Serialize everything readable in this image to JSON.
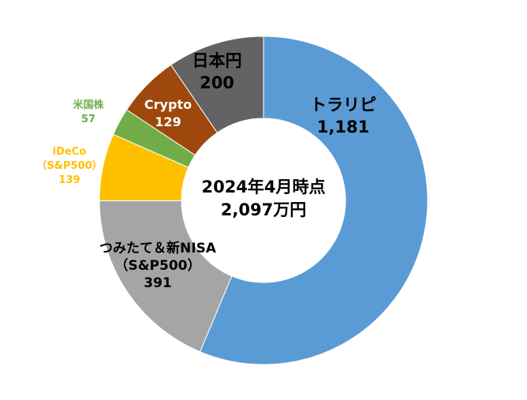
{
  "chart_data": {
    "type": "pie",
    "variant": "donut",
    "center_text": [
      "2024年4月時点",
      "2,097万円"
    ],
    "slices": [
      {
        "label": "トラリピ",
        "value": 1181,
        "value_text": "1,181",
        "color": "#5B9BD5"
      },
      {
        "label": "つみたて＆新NISA（S&P500）",
        "label_lines": [
          "つみたて＆新NISA",
          "（S&P500）"
        ],
        "value": 391,
        "value_text": "391",
        "color": "#A5A5A5"
      },
      {
        "label": "iDeCo（S&P500）",
        "label_lines": [
          "iDeCo",
          "（S&P500）"
        ],
        "value": 139,
        "value_text": "139",
        "color": "#FFC000"
      },
      {
        "label": "米国株",
        "label_lines": [
          "米国株"
        ],
        "value": 57,
        "value_text": "57",
        "color": "#70AD47"
      },
      {
        "label": "Crypto",
        "label_lines": [
          "Crypto"
        ],
        "value": 129,
        "value_text": "129",
        "color": "#9E480E"
      },
      {
        "label": "日本円",
        "label_lines": [
          "日本円"
        ],
        "value": 200,
        "value_text": "200",
        "color": "#636363"
      }
    ]
  }
}
